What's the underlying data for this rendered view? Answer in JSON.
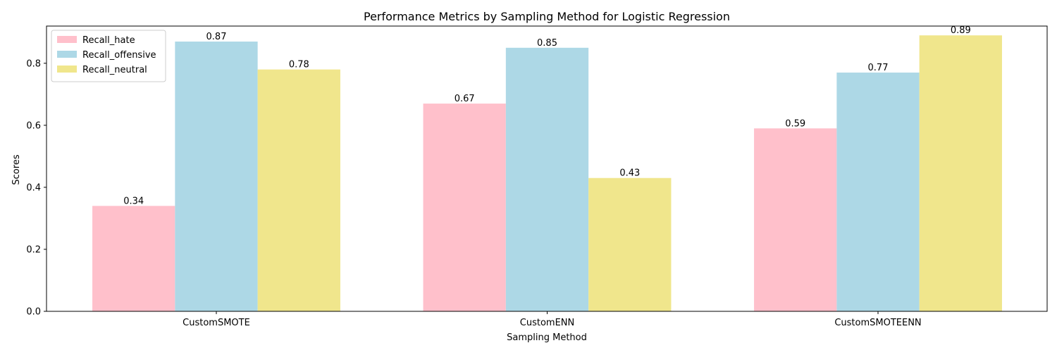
{
  "chart_data": {
    "type": "bar",
    "title": "Performance Metrics by Sampling Method for Logistic Regression",
    "xlabel": "Sampling Method",
    "ylabel": "Scores",
    "categories": [
      "CustomSMOTE",
      "CustomENN",
      "CustomSMOTEENN"
    ],
    "series": [
      {
        "name": "Recall_hate",
        "values": [
          0.34,
          0.67,
          0.59
        ],
        "labels": [
          "0.34",
          "0.67",
          "0.59"
        ],
        "color": "#ffc0cb"
      },
      {
        "name": "Recall_offensive",
        "values": [
          0.87,
          0.85,
          0.77
        ],
        "labels": [
          "0.87",
          "0.85",
          "0.77"
        ],
        "color": "#add8e6"
      },
      {
        "name": "Recall_neutral",
        "values": [
          0.78,
          0.43,
          0.89
        ],
        "labels": [
          "0.78",
          "0.43",
          "0.89"
        ],
        "color": "#f0e68c"
      }
    ],
    "yticks": [
      0.0,
      0.2,
      0.4,
      0.6,
      0.8
    ],
    "ytick_labels": [
      "0.0",
      "0.2",
      "0.4",
      "0.6",
      "0.8"
    ],
    "ylim": [
      0,
      0.92
    ],
    "grid": false,
    "legend_position": "top-left"
  }
}
